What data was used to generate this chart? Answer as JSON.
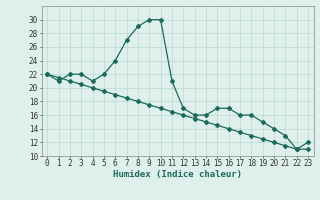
{
  "xlabel": "Humidex (Indice chaleur)",
  "x_labels": [
    "0",
    "1",
    "2",
    "3",
    "4",
    "5",
    "6",
    "7",
    "8",
    "9",
    "10",
    "11",
    "12",
    "13",
    "14",
    "15",
    "16",
    "17",
    "18",
    "19",
    "20",
    "21",
    "22",
    "23"
  ],
  "x_values": [
    0,
    1,
    2,
    3,
    4,
    5,
    6,
    7,
    8,
    9,
    10,
    11,
    12,
    13,
    14,
    15,
    16,
    17,
    18,
    19,
    20,
    21,
    22,
    23
  ],
  "line1_y": [
    22,
    21,
    22,
    22,
    21,
    22,
    24,
    27,
    29,
    30,
    30,
    21,
    17,
    16,
    16,
    17,
    17,
    16,
    16,
    15,
    14,
    13,
    11,
    12
  ],
  "line2_y": [
    22,
    21.5,
    21,
    20.5,
    20,
    19.5,
    19,
    18.5,
    18,
    17.5,
    17,
    16.5,
    16,
    15.5,
    15,
    14.5,
    14,
    13.5,
    13,
    12.5,
    12,
    11.5,
    11,
    11
  ],
  "line_color": "#1a6b5a",
  "bg_color": "#dff0ec",
  "grid_color": "#b8d8d0",
  "ylim": [
    10,
    32
  ],
  "yticks": [
    10,
    12,
    14,
    16,
    18,
    20,
    22,
    24,
    26,
    28,
    30
  ],
  "marker": "D",
  "marker_size": 2,
  "linewidth": 0.9,
  "tick_fontsize": 5.5,
  "xlabel_fontsize": 6.5
}
